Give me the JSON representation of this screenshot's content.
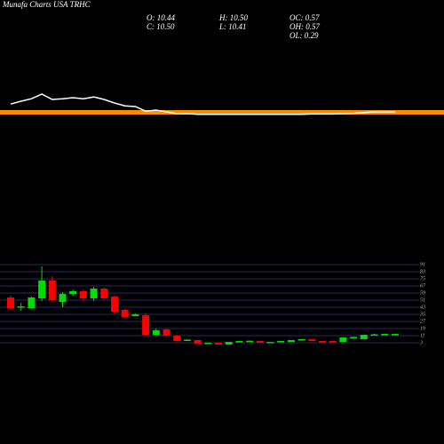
{
  "chart_data": {
    "type": "candlestick",
    "title": "Munafa Charts USA TRHC",
    "info": {
      "o": "O: 10.44",
      "c": "C: 10.50",
      "h": "H: 10.50",
      "l": "L: 10.41",
      "oc": "OC: 0.57",
      "oh": "OH: 0.57",
      "ol": "OL: 0.29"
    },
    "up_color": "#00dd00",
    "down_color": "#ff0000",
    "ylim": [
      0,
      94
    ],
    "yticks": [
      3,
      11,
      19,
      27,
      35,
      43,
      51,
      59,
      67,
      75,
      83,
      91
    ],
    "grid": true,
    "candles": [
      {
        "open": 54,
        "high": 56,
        "low": 40,
        "close": 42
      },
      {
        "open": 43,
        "high": 48,
        "low": 39,
        "close": 44
      },
      {
        "open": 42,
        "high": 55,
        "low": 41,
        "close": 54
      },
      {
        "open": 53,
        "high": 89,
        "low": 50,
        "close": 73
      },
      {
        "open": 73,
        "high": 78,
        "low": 50,
        "close": 51
      },
      {
        "open": 49,
        "high": 60,
        "low": 43,
        "close": 58
      },
      {
        "open": 58,
        "high": 63,
        "low": 56,
        "close": 61
      },
      {
        "open": 61,
        "high": 63,
        "low": 50,
        "close": 53
      },
      {
        "open": 53,
        "high": 66,
        "low": 50,
        "close": 64
      },
      {
        "open": 64,
        "high": 65,
        "low": 52,
        "close": 53
      },
      {
        "open": 55,
        "high": 56,
        "low": 36,
        "close": 38
      },
      {
        "open": 40,
        "high": 41,
        "low": 31,
        "close": 32
      },
      {
        "open": 33,
        "high": 36,
        "low": 33,
        "close": 35
      },
      {
        "open": 34,
        "high": 36,
        "low": 11,
        "close": 12
      },
      {
        "open": 12,
        "high": 19,
        "low": 11,
        "close": 17
      },
      {
        "open": 18,
        "high": 19,
        "low": 10,
        "close": 11
      },
      {
        "open": 11,
        "high": 12,
        "low": 5,
        "close": 5
      },
      {
        "open": 6,
        "high": 7,
        "low": 5,
        "close": 6.5
      },
      {
        "open": 6,
        "high": 6,
        "low": 2,
        "close": 2
      },
      {
        "open": 2,
        "high": 3,
        "low": 2,
        "close": 3
      },
      {
        "open": 3,
        "high": 3,
        "low": 1,
        "close": 1
      },
      {
        "open": 1,
        "high": 4,
        "low": 1,
        "close": 4
      },
      {
        "open": 4,
        "high": 5,
        "low": 4,
        "close": 5
      },
      {
        "open": 5,
        "high": 5.5,
        "low": 5,
        "close": 5.3
      },
      {
        "open": 5,
        "high": 5,
        "low": 3,
        "close": 3
      },
      {
        "open": 3,
        "high": 4,
        "low": 3,
        "close": 4
      },
      {
        "open": 4,
        "high": 5,
        "low": 4,
        "close": 5
      },
      {
        "open": 4,
        "high": 6,
        "low": 4,
        "close": 6
      },
      {
        "open": 6,
        "high": 7,
        "low": 6,
        "close": 7
      },
      {
        "open": 7,
        "high": 7,
        "low": 5,
        "close": 5
      },
      {
        "open": 5,
        "high": 5,
        "low": 4,
        "close": 4
      },
      {
        "open": 5,
        "high": 5,
        "low": 4,
        "close": 4
      },
      {
        "open": 4,
        "high": 9,
        "low": 4,
        "close": 9
      },
      {
        "open": 9,
        "high": 10,
        "low": 9,
        "close": 9.5
      },
      {
        "open": 7,
        "high": 12,
        "low": 7,
        "close": 12
      },
      {
        "open": 12,
        "high": 13,
        "low": 12,
        "close": 12.5
      },
      {
        "open": 12,
        "high": 13,
        "low": 12,
        "close": 13
      },
      {
        "open": 12,
        "high": 13,
        "low": 12,
        "close": 13
      }
    ],
    "indicator": {
      "color": "#ffffff",
      "ylim": [
        0,
        100
      ],
      "values": [
        32,
        40,
        47,
        60,
        45,
        47,
        50,
        47,
        52,
        45,
        35,
        27,
        25,
        12,
        15,
        10,
        5,
        5,
        3,
        3,
        3,
        3,
        3,
        3,
        3,
        3,
        3,
        3,
        3,
        4,
        4,
        4,
        5,
        6,
        8,
        10,
        10,
        10
      ]
    }
  }
}
